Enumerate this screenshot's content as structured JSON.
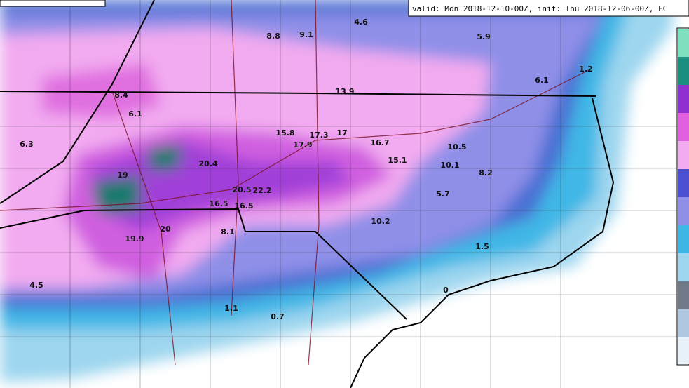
{
  "header": {
    "valid_line": "valid: Mon 2018-12-10-00Z, init: Thu 2018-12-06-00Z, FC"
  },
  "map_labels": [
    "4.6",
    "8.8",
    "9.1",
    "5.9",
    "1.2",
    "6.1",
    "8.4",
    "13.9",
    "6.1",
    "15.8",
    "17.3",
    "17",
    "17.9",
    "16.7",
    "10.5",
    "15.1",
    "10.1",
    "8.2",
    "6.3",
    "20.4",
    "19",
    "20.5",
    "22.2",
    "5.7",
    "16.5",
    "16.5",
    "10.2",
    "8.1",
    "20",
    "19.9",
    "1.5",
    "0",
    "4.5",
    "1.1",
    "0.7"
  ]
}
